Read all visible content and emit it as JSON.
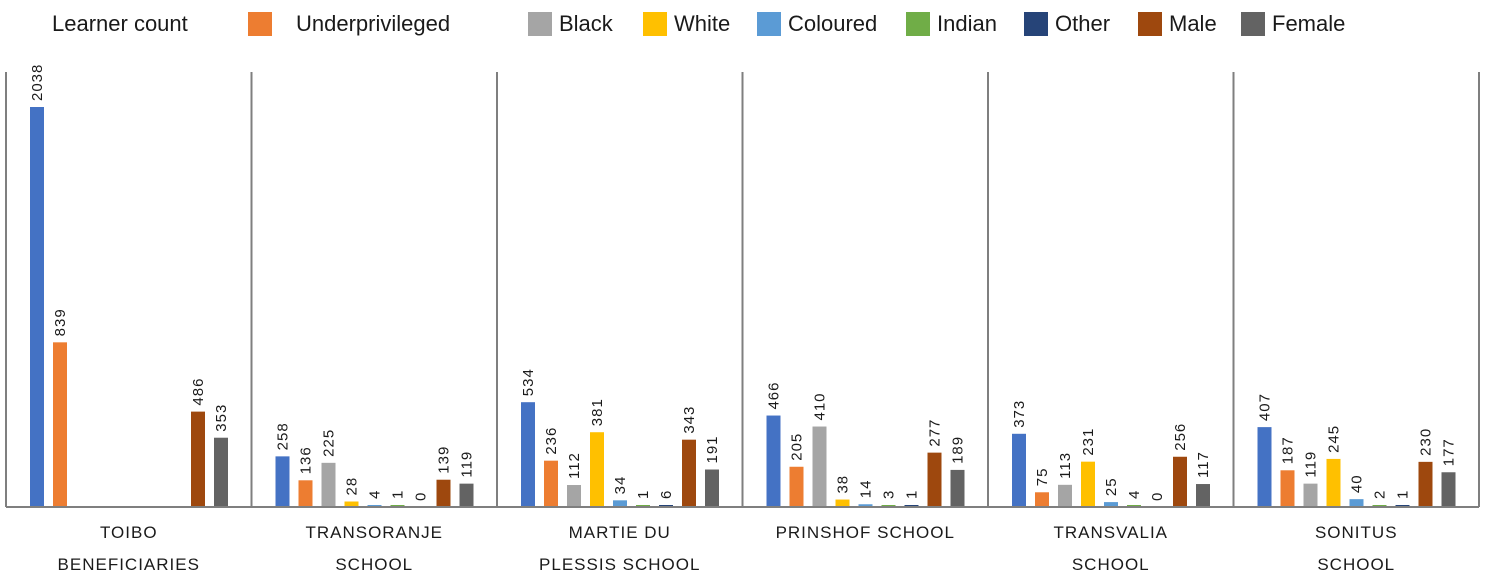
{
  "chart_data": {
    "type": "bar",
    "categories": [
      [
        "TOIBO",
        "BENEFICIARIES"
      ],
      [
        "TRANSORANJE",
        "SCHOOL"
      ],
      [
        "MARTIE DU",
        "PLESSIS SCHOOL"
      ],
      [
        "PRINSHOF SCHOOL"
      ],
      [
        "TRANSVALIA",
        "SCHOOL"
      ],
      [
        "SONITUS",
        "SCHOOL"
      ]
    ],
    "series": [
      {
        "name": "Learner count",
        "color": "#4472c4",
        "values": [
          2038,
          258,
          534,
          466,
          373,
          407
        ]
      },
      {
        "name": "Underprivileged",
        "color": "#ed7d31",
        "values": [
          839,
          136,
          236,
          205,
          75,
          187
        ]
      },
      {
        "name": "Black",
        "color": "#a5a5a5",
        "values": [
          null,
          225,
          112,
          410,
          113,
          119
        ]
      },
      {
        "name": "White",
        "color": "#ffc000",
        "values": [
          null,
          28,
          381,
          38,
          231,
          245
        ]
      },
      {
        "name": "Coloured",
        "color": "#5b9bd5",
        "values": [
          null,
          4,
          34,
          14,
          25,
          40
        ]
      },
      {
        "name": "Indian",
        "color": "#70ad47",
        "values": [
          null,
          1,
          1,
          3,
          4,
          2
        ]
      },
      {
        "name": "Other",
        "color": "#264478",
        "values": [
          null,
          0,
          6,
          1,
          0,
          1
        ]
      },
      {
        "name": "Male",
        "color": "#9e480e",
        "values": [
          486,
          139,
          343,
          277,
          256,
          230
        ]
      },
      {
        "name": "Female",
        "color": "#636363",
        "values": [
          353,
          119,
          191,
          189,
          117,
          177
        ]
      }
    ],
    "ylim": [
      0,
      2200
    ],
    "grid": false,
    "legend_position": "top",
    "axis_color": "#7f7f7f"
  }
}
